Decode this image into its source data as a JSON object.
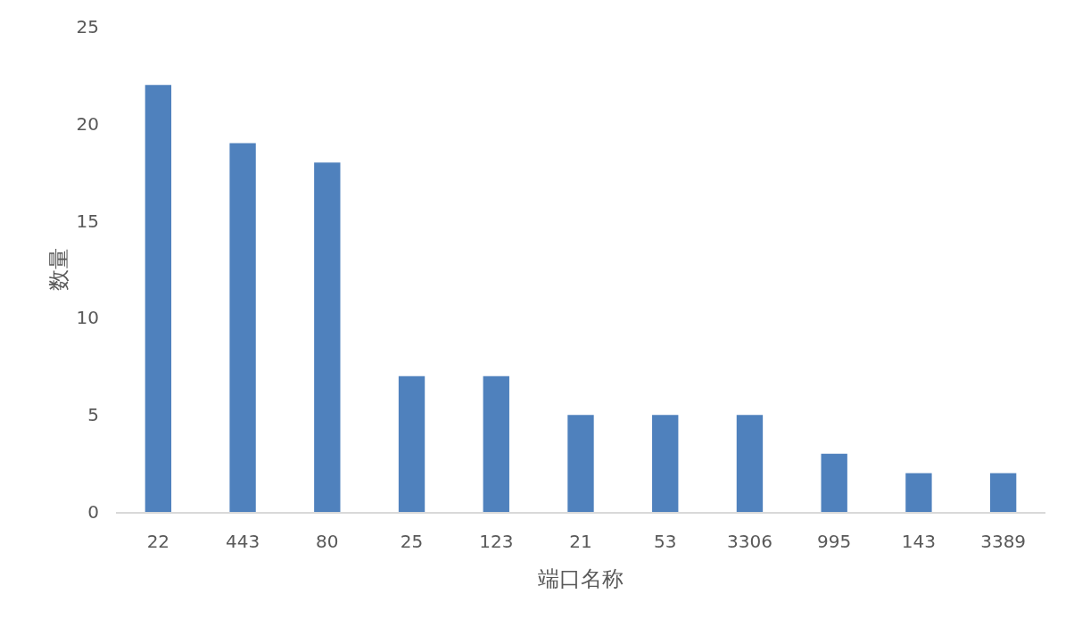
{
  "chart_data": {
    "type": "bar",
    "xlabel": "端口名称",
    "ylabel": "数量",
    "categories": [
      "22",
      "443",
      "80",
      "25",
      "123",
      "21",
      "53",
      "3306",
      "995",
      "143",
      "3389"
    ],
    "values": [
      22,
      19,
      18,
      7,
      7,
      5,
      5,
      5,
      3,
      2,
      2
    ],
    "color": "#4f81bd",
    "ylim": [
      0,
      25
    ],
    "yticks": [
      0,
      5,
      10,
      15,
      20,
      25
    ]
  }
}
